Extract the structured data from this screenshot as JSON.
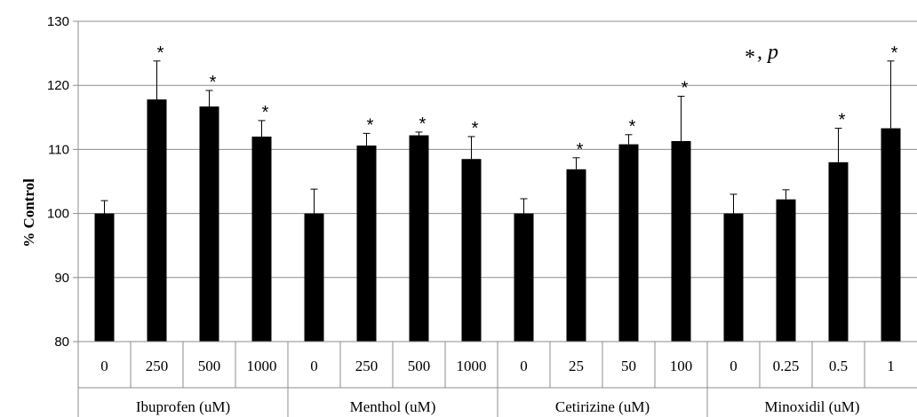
{
  "chart_data": {
    "type": "bar",
    "title": "",
    "xlabel": "",
    "ylabel": "% Control",
    "ylim": [
      80,
      130
    ],
    "yticks": [
      80,
      90,
      100,
      110,
      120,
      130
    ],
    "grid": "horizontal",
    "bar_color": "#000000",
    "groups": [
      {
        "label": "Ibuprofen (uM)",
        "categories": [
          "0",
          "250",
          "500",
          "1000"
        ]
      },
      {
        "label": "Menthol (uM)",
        "categories": [
          "0",
          "250",
          "500",
          "1000"
        ]
      },
      {
        "label": "Cetirizine (uM)",
        "categories": [
          "0",
          "25",
          "50",
          "100"
        ]
      },
      {
        "label": "Minoxidil (uM)",
        "categories": [
          "0",
          "0.25",
          "0.5",
          "1"
        ]
      }
    ],
    "values": [
      100,
      117.8,
      116.7,
      112.0,
      100,
      110.6,
      112.2,
      108.5,
      100,
      106.9,
      110.8,
      111.3,
      100,
      102.2,
      108.0,
      113.3
    ],
    "errors": [
      2.0,
      6.0,
      2.5,
      2.5,
      3.8,
      1.9,
      0.5,
      3.5,
      2.3,
      1.8,
      1.5,
      7.0,
      3.0,
      1.5,
      5.3,
      10.5
    ],
    "significant": [
      false,
      true,
      true,
      true,
      false,
      true,
      true,
      true,
      false,
      true,
      true,
      true,
      false,
      false,
      true,
      true
    ],
    "significance_marker": "*",
    "annotation": {
      "star": "*",
      "text": ", p"
    }
  }
}
